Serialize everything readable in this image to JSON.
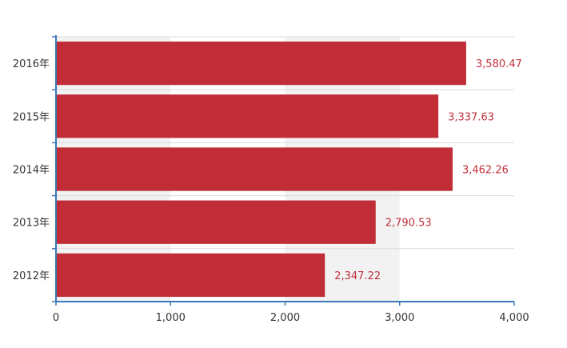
{
  "chart_data": {
    "type": "bar",
    "orientation": "horizontal",
    "categories": [
      "2016年",
      "2015年",
      "2014年",
      "2013年",
      "2012年"
    ],
    "values": [
      3580.47,
      3337.63,
      3462.26,
      2790.53,
      2347.22
    ],
    "value_labels": [
      "3,580.47",
      "3,337.63",
      "3,462.26",
      "2,790.53",
      "2,347.22"
    ],
    "x_ticks": [
      0,
      1000,
      2000,
      3000,
      4000
    ],
    "x_tick_labels": [
      "0",
      "1,000",
      "2,000",
      "3,000",
      "4,000"
    ],
    "xlim": [
      0,
      4000
    ],
    "title": "",
    "xlabel": "",
    "ylabel": "",
    "grid": true,
    "legend": "none",
    "colors": {
      "bar": "#c12d36",
      "data_label": "#c0303a",
      "axis": "#3a78b8",
      "band": "#f2f2f2",
      "category_separator": "#d9d9d9"
    }
  }
}
